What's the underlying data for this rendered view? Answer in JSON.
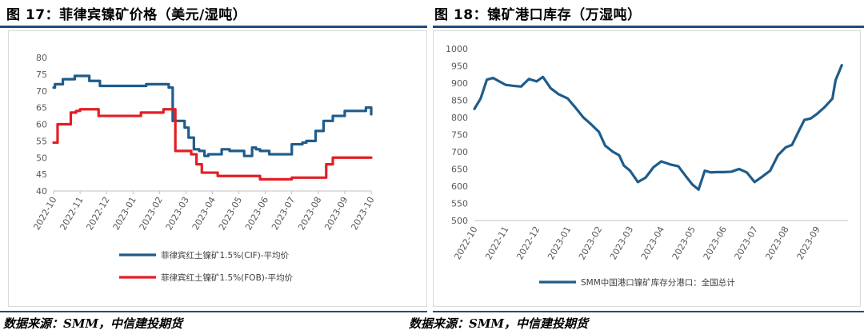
{
  "figures": [
    {
      "title": "图 17：菲律宾镍矿价格（美元/湿吨）",
      "source": "数据来源：SMM，中信建投期货"
    },
    {
      "title": "图 18：镍矿港口库存（万湿吨）",
      "source": "数据来源：SMM，中信建投期货"
    }
  ],
  "colors": {
    "rule": "#1f4e79",
    "cif": "#1f5c8b",
    "fob": "#e31e24",
    "stock": "#1f5c8b"
  },
  "chart_data": [
    {
      "type": "line",
      "step": true,
      "ylim": [
        40,
        80
      ],
      "yticks": [
        "40",
        "45",
        "50",
        "55",
        "60",
        "65",
        "70",
        "75",
        "80"
      ],
      "xlim": [
        0,
        12
      ],
      "xticks": [
        "2022-10",
        "2022-11",
        "2022-12",
        "2023-01",
        "2023-02",
        "2023-03",
        "2023-04",
        "2023-05",
        "2023-06",
        "2023-07",
        "2023-08",
        "2023-09",
        "2023-10"
      ],
      "legend_position": "bottom",
      "grid": false,
      "series": [
        {
          "name": "菲律宾红土镍矿1.5%(CIF)-平均价",
          "x": [
            0,
            0.05,
            0.2,
            0.35,
            0.5,
            0.8,
            1.0,
            1.35,
            1.55,
            1.75,
            2.2,
            3.1,
            3.5,
            4.05,
            4.35,
            4.5,
            4.6,
            4.75,
            4.95,
            5.1,
            5.3,
            5.5,
            5.7,
            5.85,
            6.1,
            6.35,
            6.5,
            6.65,
            6.9,
            7.2,
            7.5,
            7.65,
            7.8,
            8.15,
            8.35,
            8.65,
            8.85,
            9.0,
            9.2,
            9.4,
            9.55,
            9.75,
            9.9,
            10.2,
            10.55,
            11.0,
            11.5,
            11.8,
            11.9,
            12.0
          ],
          "y": [
            71,
            72,
            72,
            73.5,
            73.5,
            74.5,
            74.5,
            73,
            73,
            71.5,
            71.5,
            71.5,
            72,
            72,
            71,
            61,
            61,
            61,
            59,
            56,
            52.5,
            52,
            50.5,
            51,
            51,
            52.5,
            52.5,
            52,
            52,
            50.5,
            53,
            52.5,
            52,
            51,
            51,
            51,
            51,
            54,
            54,
            54.5,
            55,
            55,
            58,
            61,
            62.5,
            64,
            64,
            65,
            65,
            63
          ]
        },
        {
          "name": "菲律宾红土镍矿1.5%(FOB)-平均价",
          "x": [
            0,
            0.1,
            0.15,
            0.45,
            0.65,
            0.85,
            1.0,
            1.3,
            1.5,
            1.7,
            2.2,
            2.6,
            3.3,
            3.8,
            4.15,
            4.35,
            4.45,
            4.6,
            4.8,
            5.0,
            5.2,
            5.4,
            5.6,
            6.2,
            6.9,
            7.3,
            7.5,
            7.8,
            8.0,
            8.3,
            8.8,
            9.0,
            9.5,
            9.75,
            9.95,
            10.3,
            10.55,
            11.0,
            12.0
          ],
          "y": [
            54.5,
            54.5,
            60,
            60,
            63.5,
            64,
            64.5,
            64.5,
            64.5,
            62.5,
            62.5,
            62.5,
            63.5,
            63.5,
            64.5,
            64.5,
            64.5,
            52,
            52,
            52,
            51,
            48,
            45.5,
            44.5,
            44.5,
            44.5,
            44.5,
            43.5,
            43.5,
            43.5,
            43.5,
            44,
            44,
            44,
            44,
            48,
            50,
            50,
            50
          ]
        }
      ]
    },
    {
      "type": "line",
      "ylim": [
        500,
        1000
      ],
      "yticks": [
        "500",
        "550",
        "600",
        "650",
        "700",
        "750",
        "800",
        "850",
        "900",
        "950",
        "1000"
      ],
      "xlim": [
        0,
        12
      ],
      "xticks": [
        "2022-10",
        "2022-11",
        "2022-12",
        "2023-01",
        "2023-02",
        "2023-03",
        "2023-04",
        "2023-05",
        "2023-06",
        "2023-07",
        "2023-08",
        "2023-09"
      ],
      "legend_position": "bottom",
      "grid": false,
      "series": [
        {
          "name": "SMM中国港口镍矿库存分港口：全国总计",
          "x": [
            0,
            0.2,
            0.4,
            0.6,
            0.8,
            1.0,
            1.25,
            1.5,
            1.75,
            2.0,
            2.2,
            2.45,
            2.7,
            3.0,
            3.25,
            3.5,
            3.75,
            4.0,
            4.2,
            4.45,
            4.65,
            4.8,
            5.0,
            5.25,
            5.5,
            5.75,
            6.0,
            6.3,
            6.55,
            6.8,
            7.0,
            7.2,
            7.4,
            7.6,
            7.8,
            8.0,
            8.25,
            8.5,
            8.75,
            9.0,
            9.25,
            9.5,
            9.75,
            10.0,
            10.2,
            10.4,
            10.6,
            10.8,
            11.0,
            11.25,
            11.5,
            11.6,
            11.8
          ],
          "y": [
            825,
            855,
            910,
            915,
            905,
            895,
            892,
            890,
            912,
            905,
            918,
            885,
            868,
            855,
            828,
            800,
            780,
            758,
            718,
            700,
            690,
            660,
            645,
            612,
            625,
            655,
            672,
            663,
            658,
            628,
            605,
            590,
            645,
            640,
            641,
            641,
            642,
            650,
            640,
            612,
            628,
            645,
            690,
            713,
            720,
            757,
            793,
            797,
            810,
            830,
            855,
            908,
            952
          ]
        }
      ]
    }
  ]
}
